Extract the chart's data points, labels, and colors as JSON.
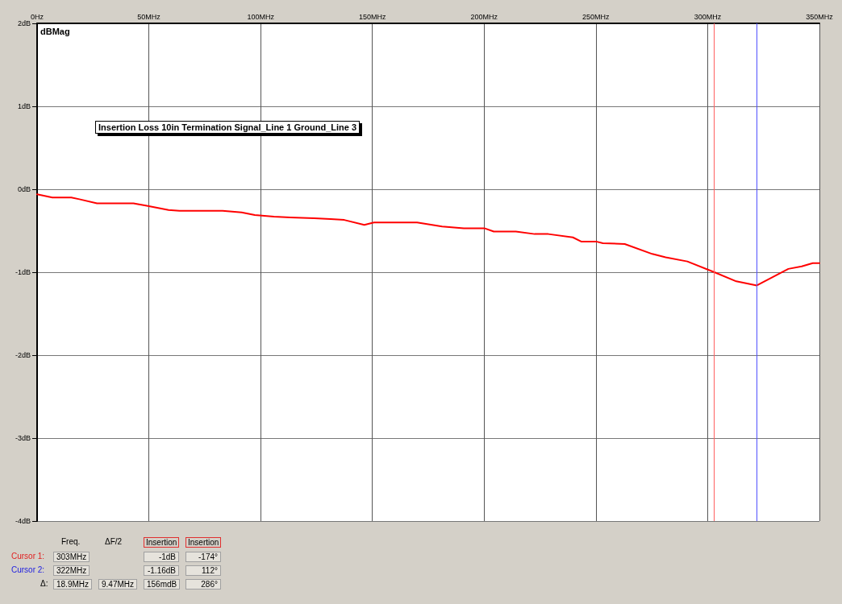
{
  "chart_data": {
    "type": "line",
    "ylabel": "dBMag",
    "x": [
      0,
      6.8,
      15.3,
      18.9,
      26.8,
      43.1,
      49.1,
      58.8,
      63.7,
      83,
      91.5,
      97.4,
      106,
      113.2,
      124,
      131.3,
      137.4,
      146.4,
      150.7,
      159.1,
      170,
      181.2,
      190.9,
      200.1,
      204.3,
      214.2,
      222.6,
      228.7,
      239.7,
      243.4,
      250.1,
      253.1,
      262.9,
      275.2,
      281.2,
      290.9,
      303,
      312.8,
      322,
      336.1,
      342.1,
      347,
      350
    ],
    "series": [
      {
        "color": "#ff0000",
        "values": [
          -0.06,
          -0.1,
          -0.1,
          -0.12,
          -0.17,
          -0.17,
          -0.2,
          -0.25,
          -0.26,
          -0.26,
          -0.28,
          -0.31,
          -0.33,
          -0.34,
          -0.35,
          -0.36,
          -0.37,
          -0.43,
          -0.4,
          -0.4,
          -0.4,
          -0.45,
          -0.47,
          -0.47,
          -0.51,
          -0.51,
          -0.54,
          -0.54,
          -0.58,
          -0.63,
          -0.63,
          -0.65,
          -0.66,
          -0.78,
          -0.82,
          -0.87,
          -1.0,
          -1.11,
          -1.16,
          -0.96,
          -0.93,
          -0.89,
          -0.89
        ]
      }
    ],
    "xlim": [
      0,
      350
    ],
    "xticks": [
      {
        "value": 0,
        "label": "0Hz"
      },
      {
        "value": 50,
        "label": "50MHz"
      },
      {
        "value": 100,
        "label": "100MHz"
      },
      {
        "value": 150,
        "label": "150MHz"
      },
      {
        "value": 200,
        "label": "200MHz"
      },
      {
        "value": 250,
        "label": "250MHz"
      },
      {
        "value": 300,
        "label": "300MHz"
      },
      {
        "value": 350,
        "label": "350MHz"
      }
    ],
    "ylim": [
      -4,
      2
    ],
    "yticks": [
      {
        "value": -4,
        "label": "-4dB"
      },
      {
        "value": -3,
        "label": "-3dB"
      },
      {
        "value": -2,
        "label": "-2dB"
      },
      {
        "value": -1,
        "label": "-1dB"
      },
      {
        "value": 0,
        "label": "0dB"
      },
      {
        "value": 1,
        "label": "1dB"
      },
      {
        "value": 2,
        "label": "2dB"
      }
    ],
    "ref_lines": [
      {
        "axis": "x",
        "value": 303,
        "color": "#ff6060"
      },
      {
        "axis": "x",
        "value": 322,
        "color": "#5050ff"
      }
    ],
    "annotations": [
      "Insertion Loss 10in Termination Signal_Line 1 Ground_Line 3",
      "Freq.",
      "ΔF/2",
      "Insertion",
      "Insertion",
      "Cursor 1:",
      "303MHz",
      "-1dB",
      "-174°",
      "Cursor 2:",
      "322MHz",
      "-1.16dB",
      "112°",
      "Δ:",
      "18.9MHz",
      "9.47MHz",
      "156mdB",
      "286°"
    ],
    "grid": true,
    "marker": "none",
    "line_style": "solid"
  }
}
